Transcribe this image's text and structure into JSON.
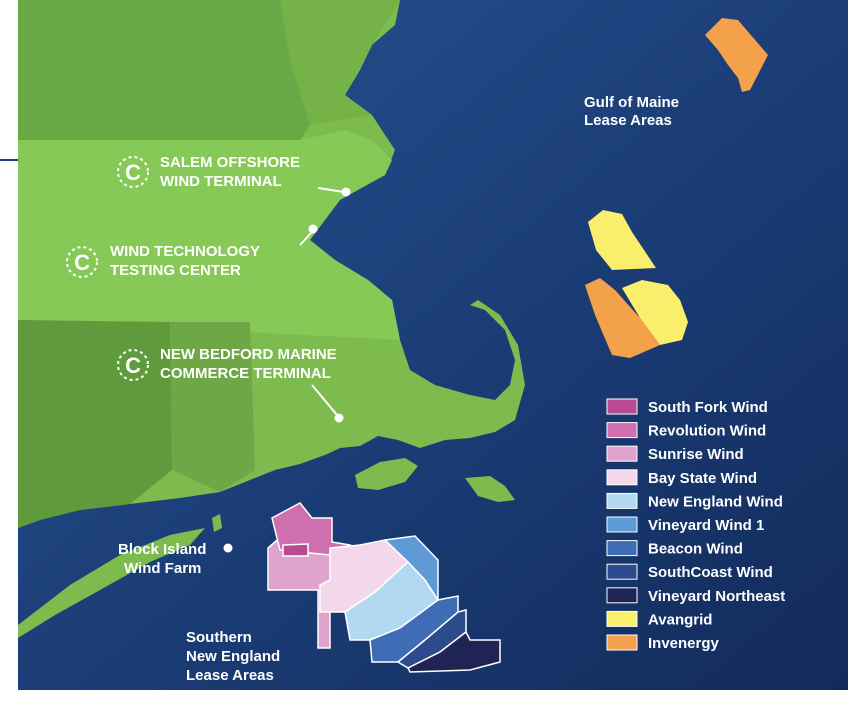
{
  "colors": {
    "ocean": "#17356b",
    "ocean_light": "#2a5391",
    "land": "#7dbb4f",
    "land_light": "#86c957",
    "land_dark": "#5f9a3c",
    "lines": "#ffffff"
  },
  "terminals": [
    {
      "line1": "SALEM OFFSHORE",
      "line2": "WIND TERMINAL",
      "icon": "terminal-c-icon"
    },
    {
      "line1": "WIND TECHNOLOGY",
      "line2": "TESTING CENTER",
      "icon": "terminal-c-icon"
    },
    {
      "line1": "NEW BEDFORD MARINE",
      "line2": "COMMERCE TERMINAL",
      "icon": "terminal-c-icon"
    }
  ],
  "places": {
    "gulf_line1": "Gulf of Maine",
    "gulf_line2": "Lease Areas",
    "block_line1": "Block Island",
    "block_line2": "Wind Farm",
    "sne_line1": "Southern",
    "sne_line2": "New England",
    "sne_line3": "Lease Areas"
  },
  "legend": [
    {
      "label": "South Fork Wind",
      "color": "#b84a95"
    },
    {
      "label": "Revolution Wind",
      "color": "#cf6fae"
    },
    {
      "label": "Sunrise Wind",
      "color": "#e0a3cd"
    },
    {
      "label": "Bay State Wind",
      "color": "#f2d8ea"
    },
    {
      "label": "New England Wind",
      "color": "#b3d9f2"
    },
    {
      "label": "Vineyard Wind 1",
      "color": "#5e9ad6"
    },
    {
      "label": "Beacon Wind",
      "color": "#3e6cb5"
    },
    {
      "label": "SouthCoast Wind",
      "color": "#2c4a8c"
    },
    {
      "label": "Vineyard Northeast",
      "color": "#1f2454"
    },
    {
      "label": "Avangrid",
      "color": "#f9ef6d"
    },
    {
      "label": "Invenergy",
      "color": "#f3a14a"
    }
  ]
}
